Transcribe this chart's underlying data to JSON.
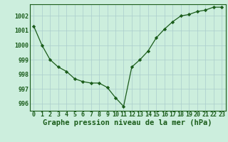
{
  "x": [
    0,
    1,
    2,
    3,
    4,
    5,
    6,
    7,
    8,
    9,
    10,
    11,
    12,
    13,
    14,
    15,
    16,
    17,
    18,
    19,
    20,
    21,
    22,
    23
  ],
  "y": [
    1001.3,
    1000.0,
    999.0,
    998.5,
    998.2,
    997.7,
    997.5,
    997.4,
    997.4,
    997.1,
    996.4,
    995.8,
    998.5,
    999.0,
    999.6,
    1000.5,
    1001.1,
    1001.6,
    1002.0,
    1002.1,
    1002.3,
    1002.4,
    1002.6,
    1002.6
  ],
  "ylim": [
    995.5,
    1002.8
  ],
  "xlim": [
    -0.5,
    23.5
  ],
  "yticks": [
    996,
    997,
    998,
    999,
    1000,
    1001,
    1002
  ],
  "xticks": [
    0,
    1,
    2,
    3,
    4,
    5,
    6,
    7,
    8,
    9,
    10,
    11,
    12,
    13,
    14,
    15,
    16,
    17,
    18,
    19,
    20,
    21,
    22,
    23
  ],
  "xlabel": "Graphe pression niveau de la mer (hPa)",
  "line_color": "#1a5c1a",
  "marker": "D",
  "marker_size": 2.2,
  "bg_color": "#cceedd",
  "grid_color": "#aacccc",
  "text_color": "#1a5c1a",
  "font_size_label": 7.5,
  "font_size_tick": 6.0
}
